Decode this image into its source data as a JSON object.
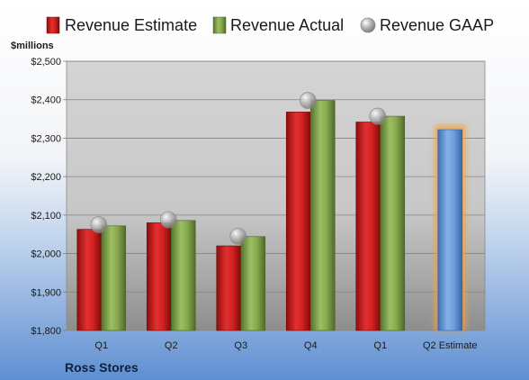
{
  "chart_data": {
    "type": "bar",
    "title": "",
    "company": "Ross Stores",
    "ylabel": "$millions",
    "xlabel": "",
    "ylim": [
      1800,
      2500
    ],
    "yticks": [
      1800,
      1900,
      2000,
      2100,
      2200,
      2300,
      2400,
      2500
    ],
    "ytick_labels": [
      "$1,800",
      "$1,900",
      "$2,000",
      "$2,100",
      "$2,200",
      "$2,300",
      "$2,400",
      "$2,500"
    ],
    "categories": [
      "Q1",
      "Q2",
      "Q3",
      "Q4",
      "Q1",
      "Q2 Estimate"
    ],
    "grid": true,
    "legend_position": "top",
    "series": [
      {
        "name": "Revenue Estimate",
        "kind": "bar",
        "color": "#cc1f1f",
        "values": [
          2063,
          2080,
          2020,
          2368,
          2342,
          null
        ]
      },
      {
        "name": "Revenue Actual",
        "kind": "bar",
        "color": "#7ea04a",
        "values": [
          2072,
          2086,
          2044,
          2398,
          2357,
          null
        ]
      },
      {
        "name": "Revenue GAAP",
        "kind": "marker",
        "color": "#9a9a9a",
        "values": [
          2075,
          2088,
          2045,
          2398,
          2357,
          null
        ]
      },
      {
        "name": "",
        "kind": "bar",
        "color": "#6a9ad8",
        "highlight": "#f5a040",
        "values": [
          null,
          null,
          null,
          null,
          null,
          2322
        ]
      }
    ]
  }
}
